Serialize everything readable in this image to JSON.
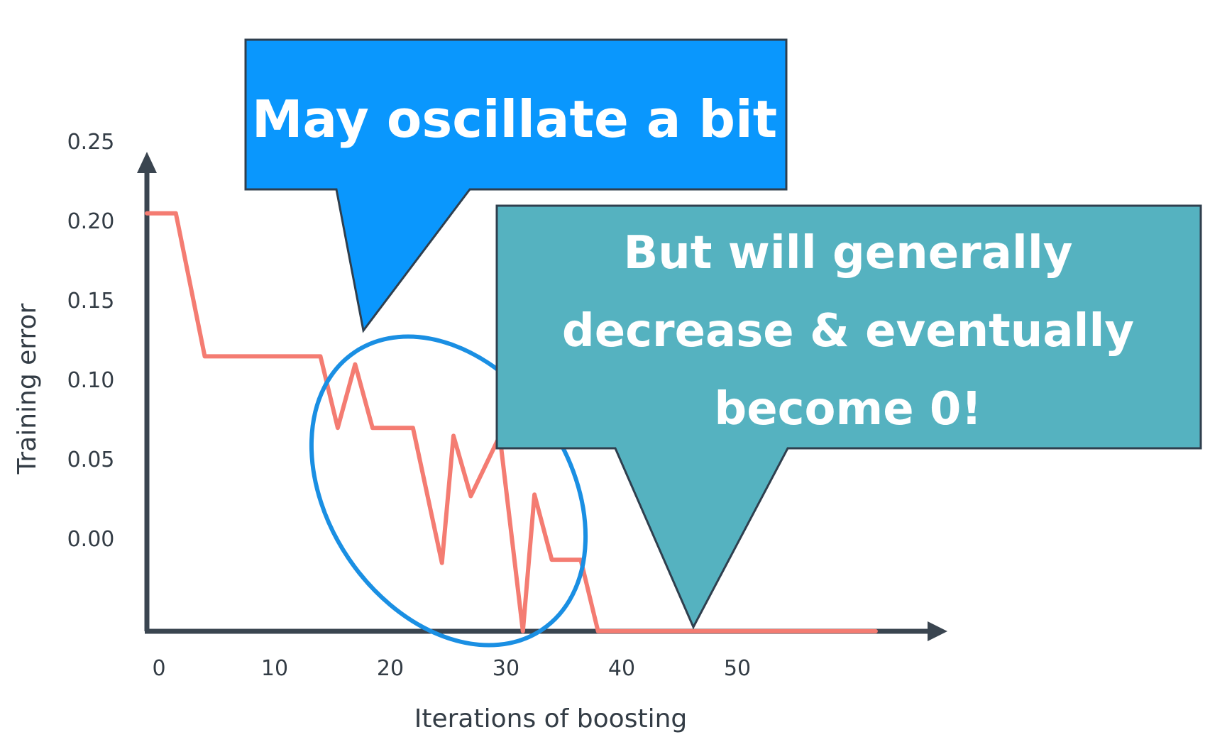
{
  "chart_data": {
    "type": "line",
    "title": "",
    "xlabel": "Iterations of boosting",
    "ylabel": "Training error",
    "x_ticks": [
      0,
      10,
      20,
      30,
      40,
      50
    ],
    "x_tick_labels": [
      "0",
      "10",
      "20",
      "30",
      "40",
      "50"
    ],
    "y_tick_labels": [
      "0.25",
      "0.20",
      "0.15",
      "0.10",
      "0.05",
      "0.00"
    ],
    "y_ticks": [
      0.25,
      0.2,
      0.15,
      0.1,
      0.05,
      0.0
    ],
    "xlim": [
      -1,
      68
    ],
    "grid": false,
    "legend": "none",
    "series": [
      {
        "x": [
          0,
          2.5,
          5,
          15,
          16.5,
          18,
          19.5,
          23,
          25.5,
          26.5,
          28,
          30.5,
          32.5,
          33.5,
          35,
          37.5,
          39,
          63
        ],
        "y": [
          0.205,
          0.205,
          0.115,
          0.115,
          0.07,
          0.11,
          0.07,
          0.07,
          -0.015,
          0.065,
          0.027,
          0.065,
          -0.058,
          0.028,
          -0.013,
          -0.013,
          -0.058,
          -0.058
        ]
      }
    ],
    "colors": {
      "line": "#f47c72",
      "axes": "#3a4550",
      "ellipse": "#1a8fe3",
      "callout_1": "#0a97fd",
      "callout_2": "#55b2c0"
    }
  },
  "annotations": {
    "callout_1": {
      "lines": [
        "May oscillate a bit"
      ]
    },
    "callout_2": {
      "lines": [
        "But will generally",
        "decrease & eventually",
        "become 0!"
      ]
    }
  }
}
